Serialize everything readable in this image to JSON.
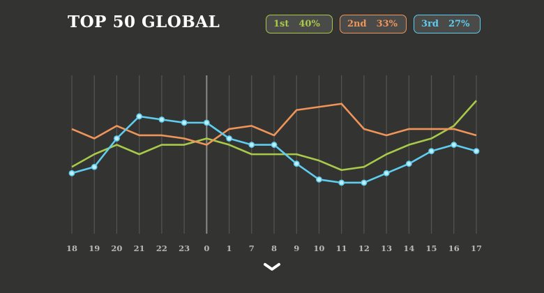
{
  "title": "TOP 50 GLOBAL",
  "legend": [
    {
      "rank": "1st",
      "share": "40%",
      "color": "#a8c94a"
    },
    {
      "rank": "2nd",
      "share": "33%",
      "color": "#f0955a"
    },
    {
      "rank": "3rd",
      "share": "27%",
      "color": "#5fcdf0"
    }
  ],
  "chart_data": {
    "type": "line",
    "categories": [
      "18",
      "19",
      "20",
      "21",
      "22",
      "23",
      "0",
      "1",
      "7",
      "8",
      "9",
      "10",
      "11",
      "12",
      "13",
      "14",
      "15",
      "16",
      "17"
    ],
    "highlight_category": "0",
    "grid": true,
    "series": [
      {
        "name": "1st",
        "color": "#a8c94a",
        "markers": false,
        "values": [
          49,
          45,
          42,
          45,
          42,
          42,
          40,
          42,
          45,
          45,
          45,
          47,
          50,
          49,
          45,
          42,
          40,
          36,
          28
        ]
      },
      {
        "name": "2nd",
        "color": "#f0955a",
        "markers": false,
        "values": [
          37,
          40,
          36,
          39,
          39,
          40,
          42,
          37,
          36,
          39,
          31,
          30,
          29,
          37,
          39,
          37,
          37,
          37,
          39
        ]
      },
      {
        "name": "3rd",
        "color": "#5fcdf0",
        "markers": true,
        "values": [
          51,
          49,
          40,
          33,
          34,
          35,
          35,
          40,
          42,
          42,
          48,
          53,
          54,
          54,
          51,
          48,
          44,
          42,
          44
        ]
      }
    ]
  },
  "icons": {
    "scroll": "chevron-down-icon"
  }
}
